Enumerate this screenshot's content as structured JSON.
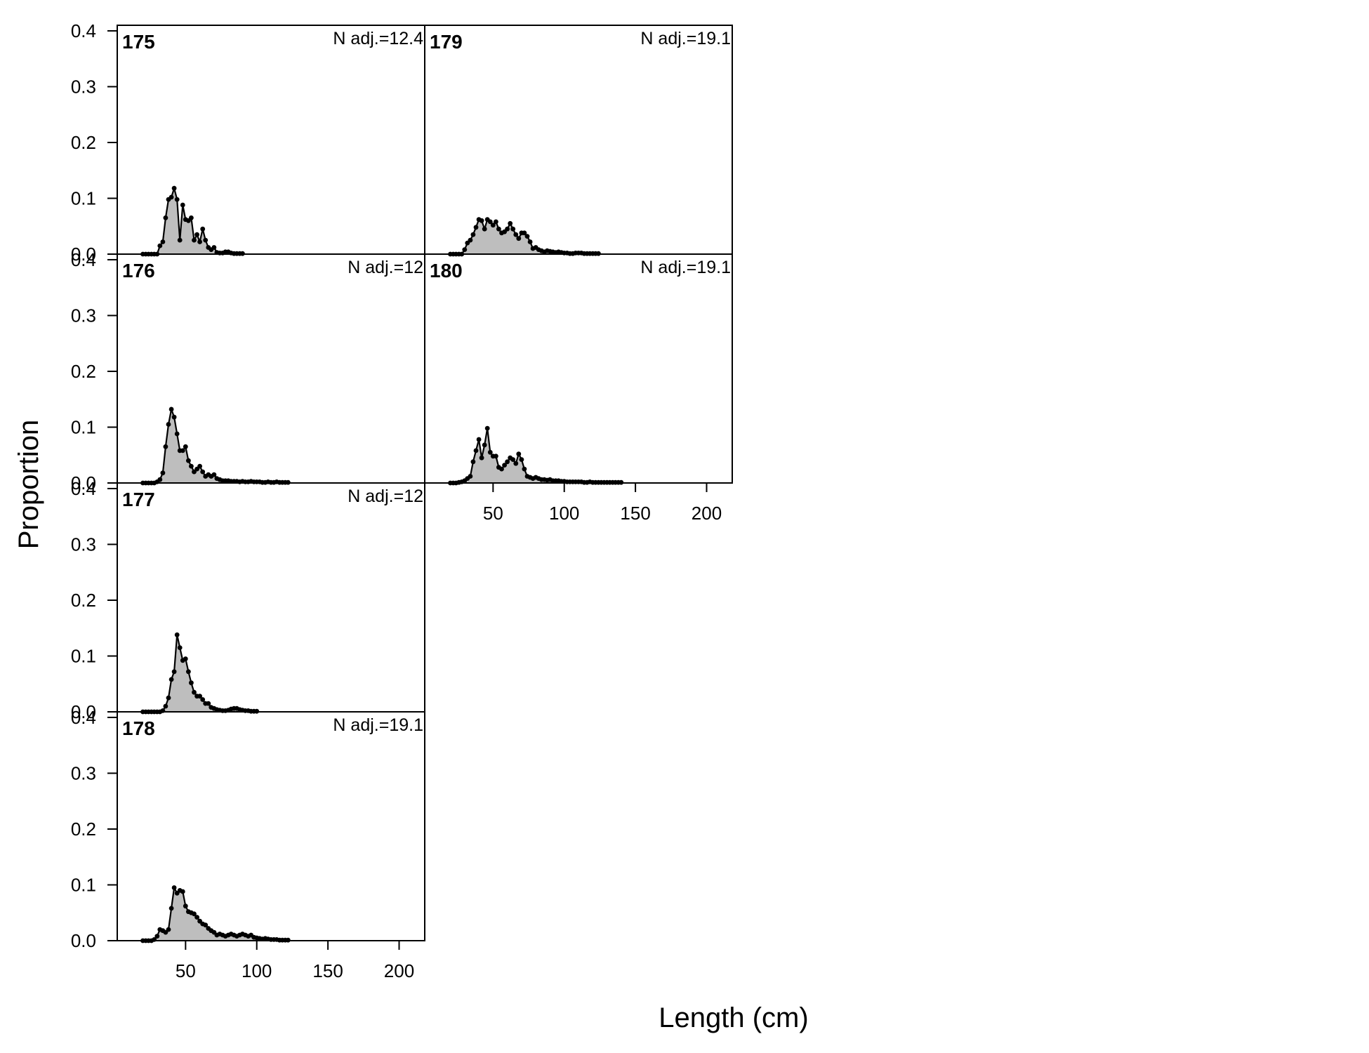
{
  "figure": {
    "ylabel": "Proportion",
    "xlabel": "Length (cm)"
  },
  "chart_data": {
    "type": "area",
    "xlabel": "Length (cm)",
    "ylabel": "Proportion",
    "xlim": [
      2,
      218
    ],
    "ylim": [
      0,
      0.41
    ],
    "x_ticks": [
      50,
      100,
      150,
      200
    ],
    "y_ticks": [
      0.0,
      0.1,
      0.2,
      0.3,
      0.4
    ],
    "bin_width": 2,
    "bin_start": 20,
    "fill_color": "#bebebe",
    "line_color": "#000000",
    "panels": [
      {
        "id": "175",
        "n_adj": "N adj.=12.4",
        "row": 0,
        "col": 0,
        "x_axis": false,
        "points": [
          [
            20,
            0
          ],
          [
            22,
            0
          ],
          [
            24,
            0
          ],
          [
            26,
            0
          ],
          [
            28,
            0
          ],
          [
            30,
            0
          ],
          [
            32,
            0.015
          ],
          [
            34,
            0.022
          ],
          [
            36,
            0.065
          ],
          [
            38,
            0.098
          ],
          [
            40,
            0.102
          ],
          [
            42,
            0.118
          ],
          [
            44,
            0.098
          ],
          [
            46,
            0.025
          ],
          [
            48,
            0.088
          ],
          [
            50,
            0.062
          ],
          [
            52,
            0.06
          ],
          [
            54,
            0.065
          ],
          [
            56,
            0.025
          ],
          [
            58,
            0.035
          ],
          [
            60,
            0.022
          ],
          [
            62,
            0.045
          ],
          [
            64,
            0.025
          ],
          [
            66,
            0.012
          ],
          [
            68,
            0.008
          ],
          [
            70,
            0.012
          ],
          [
            72,
            0.003
          ],
          [
            74,
            0.002
          ],
          [
            76,
            0.002
          ],
          [
            78,
            0.004
          ],
          [
            80,
            0.004
          ],
          [
            82,
            0.002
          ],
          [
            84,
            0.001
          ],
          [
            86,
            0.001
          ],
          [
            88,
            0.001
          ],
          [
            90,
            0.001
          ]
        ]
      },
      {
        "id": "176",
        "n_adj": "N adj.=12",
        "row": 1,
        "col": 0,
        "x_axis": false,
        "points": [
          [
            20,
            0
          ],
          [
            22,
            0
          ],
          [
            24,
            0
          ],
          [
            26,
            0
          ],
          [
            28,
            0
          ],
          [
            30,
            0.002
          ],
          [
            32,
            0.006
          ],
          [
            34,
            0.018
          ],
          [
            36,
            0.065
          ],
          [
            38,
            0.105
          ],
          [
            40,
            0.132
          ],
          [
            42,
            0.118
          ],
          [
            44,
            0.088
          ],
          [
            46,
            0.058
          ],
          [
            48,
            0.058
          ],
          [
            50,
            0.065
          ],
          [
            52,
            0.04
          ],
          [
            54,
            0.03
          ],
          [
            56,
            0.02
          ],
          [
            58,
            0.025
          ],
          [
            60,
            0.03
          ],
          [
            62,
            0.02
          ],
          [
            64,
            0.012
          ],
          [
            66,
            0.015
          ],
          [
            68,
            0.012
          ],
          [
            70,
            0.015
          ],
          [
            72,
            0.008
          ],
          [
            74,
            0.006
          ],
          [
            76,
            0.004
          ],
          [
            78,
            0.004
          ],
          [
            80,
            0.004
          ],
          [
            82,
            0.003
          ],
          [
            84,
            0.003
          ],
          [
            86,
            0.003
          ],
          [
            88,
            0.002
          ],
          [
            90,
            0.003
          ],
          [
            92,
            0.002
          ],
          [
            94,
            0.002
          ],
          [
            96,
            0.003
          ],
          [
            98,
            0.002
          ],
          [
            100,
            0.002
          ],
          [
            102,
            0.002
          ],
          [
            104,
            0.001
          ],
          [
            106,
            0.001
          ],
          [
            108,
            0.002
          ],
          [
            110,
            0.001
          ],
          [
            112,
            0.001
          ],
          [
            114,
            0.002
          ],
          [
            116,
            0.001
          ],
          [
            118,
            0.001
          ],
          [
            120,
            0.001
          ],
          [
            122,
            0.001
          ]
        ]
      },
      {
        "id": "177",
        "n_adj": "N adj.=12",
        "row": 2,
        "col": 0,
        "x_axis": false,
        "points": [
          [
            20,
            0
          ],
          [
            22,
            0
          ],
          [
            24,
            0
          ],
          [
            26,
            0
          ],
          [
            28,
            0
          ],
          [
            30,
            0
          ],
          [
            32,
            0
          ],
          [
            34,
            0.002
          ],
          [
            36,
            0.01
          ],
          [
            38,
            0.025
          ],
          [
            40,
            0.058
          ],
          [
            42,
            0.072
          ],
          [
            44,
            0.138
          ],
          [
            46,
            0.115
          ],
          [
            48,
            0.092
          ],
          [
            50,
            0.095
          ],
          [
            52,
            0.072
          ],
          [
            54,
            0.052
          ],
          [
            56,
            0.035
          ],
          [
            58,
            0.028
          ],
          [
            60,
            0.028
          ],
          [
            62,
            0.022
          ],
          [
            64,
            0.015
          ],
          [
            66,
            0.015
          ],
          [
            68,
            0.008
          ],
          [
            70,
            0.006
          ],
          [
            72,
            0.004
          ],
          [
            74,
            0.003
          ],
          [
            76,
            0.002
          ],
          [
            78,
            0.002
          ],
          [
            80,
            0.003
          ],
          [
            82,
            0.005
          ],
          [
            84,
            0.006
          ],
          [
            86,
            0.006
          ],
          [
            88,
            0.004
          ],
          [
            90,
            0.003
          ],
          [
            92,
            0.002
          ],
          [
            94,
            0.002
          ],
          [
            96,
            0.001
          ],
          [
            98,
            0.001
          ],
          [
            100,
            0.001
          ]
        ]
      },
      {
        "id": "178",
        "n_adj": "N adj.=19.1",
        "row": 3,
        "col": 0,
        "x_axis": true,
        "points": [
          [
            20,
            0
          ],
          [
            22,
            0
          ],
          [
            24,
            0
          ],
          [
            26,
            0
          ],
          [
            28,
            0.002
          ],
          [
            30,
            0.008
          ],
          [
            32,
            0.02
          ],
          [
            34,
            0.018
          ],
          [
            36,
            0.015
          ],
          [
            38,
            0.02
          ],
          [
            40,
            0.058
          ],
          [
            42,
            0.095
          ],
          [
            44,
            0.085
          ],
          [
            46,
            0.09
          ],
          [
            48,
            0.088
          ],
          [
            50,
            0.062
          ],
          [
            52,
            0.052
          ],
          [
            54,
            0.05
          ],
          [
            56,
            0.048
          ],
          [
            58,
            0.042
          ],
          [
            60,
            0.035
          ],
          [
            62,
            0.03
          ],
          [
            64,
            0.028
          ],
          [
            66,
            0.022
          ],
          [
            68,
            0.018
          ],
          [
            70,
            0.015
          ],
          [
            72,
            0.01
          ],
          [
            74,
            0.012
          ],
          [
            76,
            0.01
          ],
          [
            78,
            0.008
          ],
          [
            80,
            0.01
          ],
          [
            82,
            0.012
          ],
          [
            84,
            0.01
          ],
          [
            86,
            0.008
          ],
          [
            88,
            0.01
          ],
          [
            90,
            0.012
          ],
          [
            92,
            0.01
          ],
          [
            94,
            0.008
          ],
          [
            96,
            0.01
          ],
          [
            98,
            0.006
          ],
          [
            100,
            0.005
          ],
          [
            102,
            0.004
          ],
          [
            104,
            0.003
          ],
          [
            106,
            0.004
          ],
          [
            108,
            0.003
          ],
          [
            110,
            0.002
          ],
          [
            112,
            0.002
          ],
          [
            114,
            0.002
          ],
          [
            116,
            0.001
          ],
          [
            118,
            0.001
          ],
          [
            120,
            0.001
          ],
          [
            122,
            0.001
          ]
        ]
      },
      {
        "id": "179",
        "n_adj": "N adj.=19.1",
        "row": 0,
        "col": 1,
        "x_axis": false,
        "points": [
          [
            20,
            0
          ],
          [
            22,
            0
          ],
          [
            24,
            0
          ],
          [
            26,
            0
          ],
          [
            28,
            0
          ],
          [
            30,
            0.008
          ],
          [
            32,
            0.02
          ],
          [
            34,
            0.025
          ],
          [
            36,
            0.035
          ],
          [
            38,
            0.048
          ],
          [
            40,
            0.062
          ],
          [
            42,
            0.06
          ],
          [
            44,
            0.045
          ],
          [
            46,
            0.062
          ],
          [
            48,
            0.058
          ],
          [
            50,
            0.052
          ],
          [
            52,
            0.058
          ],
          [
            54,
            0.045
          ],
          [
            56,
            0.038
          ],
          [
            58,
            0.04
          ],
          [
            60,
            0.045
          ],
          [
            62,
            0.055
          ],
          [
            64,
            0.045
          ],
          [
            66,
            0.035
          ],
          [
            68,
            0.028
          ],
          [
            70,
            0.038
          ],
          [
            72,
            0.038
          ],
          [
            74,
            0.032
          ],
          [
            76,
            0.022
          ],
          [
            78,
            0.01
          ],
          [
            80,
            0.012
          ],
          [
            82,
            0.008
          ],
          [
            84,
            0.006
          ],
          [
            86,
            0.004
          ],
          [
            88,
            0.006
          ],
          [
            90,
            0.005
          ],
          [
            92,
            0.004
          ],
          [
            94,
            0.003
          ],
          [
            96,
            0.004
          ],
          [
            98,
            0.003
          ],
          [
            100,
            0.002
          ],
          [
            102,
            0.002
          ],
          [
            104,
            0.001
          ],
          [
            106,
            0.001
          ],
          [
            108,
            0.002
          ],
          [
            110,
            0.002
          ],
          [
            112,
            0.002
          ],
          [
            114,
            0.001
          ],
          [
            116,
            0.001
          ],
          [
            118,
            0.001
          ],
          [
            120,
            0.001
          ],
          [
            122,
            0.001
          ],
          [
            124,
            0.001
          ]
        ]
      },
      {
        "id": "180",
        "n_adj": "N adj.=19.1",
        "row": 1,
        "col": 1,
        "x_axis": true,
        "points": [
          [
            20,
            0
          ],
          [
            22,
            0
          ],
          [
            24,
            0
          ],
          [
            26,
            0.001
          ],
          [
            28,
            0.002
          ],
          [
            30,
            0.004
          ],
          [
            32,
            0.008
          ],
          [
            34,
            0.012
          ],
          [
            36,
            0.038
          ],
          [
            38,
            0.058
          ],
          [
            40,
            0.078
          ],
          [
            42,
            0.045
          ],
          [
            44,
            0.068
          ],
          [
            46,
            0.098
          ],
          [
            48,
            0.055
          ],
          [
            50,
            0.048
          ],
          [
            52,
            0.048
          ],
          [
            54,
            0.028
          ],
          [
            56,
            0.025
          ],
          [
            58,
            0.032
          ],
          [
            60,
            0.038
          ],
          [
            62,
            0.045
          ],
          [
            64,
            0.042
          ],
          [
            66,
            0.035
          ],
          [
            68,
            0.052
          ],
          [
            70,
            0.042
          ],
          [
            72,
            0.025
          ],
          [
            74,
            0.012
          ],
          [
            76,
            0.01
          ],
          [
            78,
            0.008
          ],
          [
            80,
            0.01
          ],
          [
            82,
            0.008
          ],
          [
            84,
            0.006
          ],
          [
            86,
            0.006
          ],
          [
            88,
            0.005
          ],
          [
            90,
            0.006
          ],
          [
            92,
            0.004
          ],
          [
            94,
            0.004
          ],
          [
            96,
            0.004
          ],
          [
            98,
            0.003
          ],
          [
            100,
            0.003
          ],
          [
            102,
            0.002
          ],
          [
            104,
            0.002
          ],
          [
            106,
            0.002
          ],
          [
            108,
            0.002
          ],
          [
            110,
            0.002
          ],
          [
            112,
            0.002
          ],
          [
            114,
            0.001
          ],
          [
            116,
            0.001
          ],
          [
            118,
            0.002
          ],
          [
            120,
            0.001
          ],
          [
            122,
            0.001
          ],
          [
            124,
            0.001
          ],
          [
            126,
            0.001
          ],
          [
            128,
            0.001
          ],
          [
            130,
            0.001
          ],
          [
            132,
            0.001
          ],
          [
            134,
            0.001
          ],
          [
            136,
            0.001
          ],
          [
            138,
            0.001
          ],
          [
            140,
            0.001
          ]
        ]
      }
    ]
  }
}
